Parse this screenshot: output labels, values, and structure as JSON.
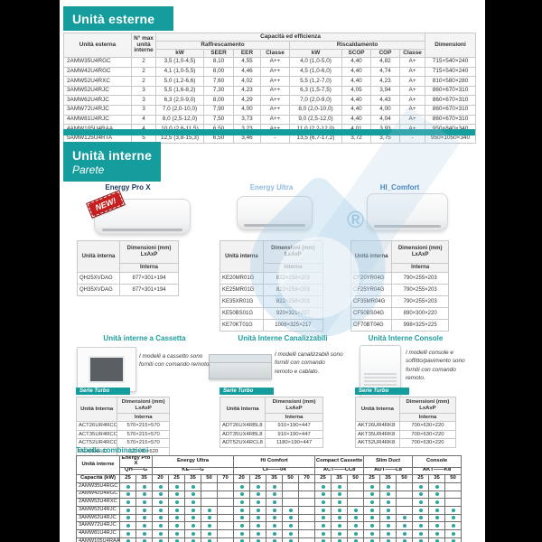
{
  "colors": {
    "accent": "#159c9c",
    "dot": "#2ba59e",
    "hi_comfort_blue": "#2e74b5",
    "energy_ultra_blue": "#8fbadd",
    "energy_prox_navy": "#17375e",
    "new_red": "#c51f1f"
  },
  "watermark": {
    "symbol": "®"
  },
  "outdoor": {
    "title": "Unità esterne",
    "header": {
      "unit": "Unità esterna",
      "max_units": "N° max\nunità\ninterne",
      "capacity": "Capacità ed efficienza",
      "cooling": "Raffrescamento",
      "heating": "Riscaldamento",
      "cooling_cols": [
        "kW",
        "SEER",
        "EER",
        "Classe"
      ],
      "heating_cols": [
        "kW",
        "SCOP",
        "COP",
        "Classe"
      ],
      "dimensions": "Dimensioni"
    },
    "rows": [
      [
        "2AMW35U4RGC",
        "2",
        "3,5 (1,0-4,5)",
        "8,10",
        "4,55",
        "A++",
        "4,0 (1,0-5,0)",
        "4,40",
        "4,82",
        "A+",
        "715×540×240"
      ],
      [
        "2AMW42U4RGC",
        "2",
        "4,1 (1,0-5,5)",
        "8,00",
        "4,46",
        "A++",
        "4,5 (1,0-6,0)",
        "4,40",
        "4,74",
        "A+",
        "715×540×240"
      ],
      [
        "2AMW52U4RXC",
        "2",
        "5,0 (1,2-6,6)",
        "7,60",
        "4,02",
        "A++",
        "5,5 (1,2-7,0)",
        "4,40",
        "4,23",
        "A+",
        "810×580×280"
      ],
      [
        "3AMW52U4RJC",
        "3",
        "5,5 (1,6-8,2)",
        "7,30",
        "4,23",
        "A++",
        "6,3 (1,5-7,5)",
        "4,05",
        "3,94",
        "A+",
        "860×670×310"
      ],
      [
        "3AMW62U4RJC",
        "3",
        "6,3 (2,0-9,0)",
        "8,00",
        "4,29",
        "A++",
        "7,0 (2,0-9,0)",
        "4,40",
        "4,43",
        "A+",
        "860×670×310"
      ],
      [
        "3AMW72U4RJC",
        "3",
        "7,0 (2,0-10,0)",
        "7,90",
        "4,00",
        "A++",
        "8,0 (2,0-10,0)",
        "4,40",
        "4,00",
        "A+",
        "860×670×310"
      ],
      [
        "4AMW81U4RJC",
        "4",
        "8,0 (2,5-12,0)",
        "7,50",
        "3,73",
        "A++",
        "9,0 (2,5-12,0)",
        "4,40",
        "4,04",
        "A+",
        "860×670×310"
      ],
      [
        "4AMW105U4RAA",
        "4",
        "10,0 (2,6-11,5)",
        "6,50",
        "3,23",
        "A++",
        "11,0 (2,2-12,0)",
        "4,01",
        "3,93",
        "A+",
        "950×840×340"
      ],
      [
        "5AMW125U4RTA",
        "5",
        "12,5 (3,8-15,3)",
        "6,50",
        "3,46",
        "-",
        "13,5 (6,7-17,2)",
        "3,72",
        "3,75",
        "-",
        "950×1050×340"
      ]
    ]
  },
  "indoor_wall": {
    "title": "Unità interne",
    "subtitle": "Parete",
    "col_unit": "Unità interna",
    "col_dim": "Dimensioni (mm) LxAxP",
    "col_sub": "Interna",
    "products": [
      {
        "name": "Energy Pro X",
        "badge": "NEW!",
        "rows": [
          [
            "QH25XVDAG",
            "877×301×194"
          ],
          [
            "QH35XVDAG",
            "877×301×194"
          ]
        ]
      },
      {
        "name": "Energy Ultra",
        "badge": "",
        "rows": [
          [
            "KE20MR01G",
            "822×258×203"
          ],
          [
            "KE25MR01G",
            "822×258×203"
          ],
          [
            "KE35XR01G",
            "822×258×203"
          ],
          [
            "KE50BS01G",
            "920×321×227"
          ],
          [
            "KE70KT01G",
            "1008×325×217"
          ]
        ]
      },
      {
        "name": "HI_Comfort",
        "badge": "",
        "rows": [
          [
            "CF20YR04G",
            "790×255×203"
          ],
          [
            "CF25YR04G",
            "790×255×203"
          ],
          [
            "CF35MR04G",
            "790×255×203"
          ],
          [
            "CF50BS04G",
            "890×300×220"
          ],
          [
            "CF70BT04G",
            "998×325×225"
          ]
        ]
      }
    ]
  },
  "indoor_other": {
    "col_unit": "Unità Interna",
    "col_dim": "Dimensioni (mm) LxAxP",
    "col_sub": "Interna",
    "sections": [
      {
        "title": "Unità interne a Cassetta",
        "serie": "Serie Turbo",
        "desc": "I modelli a cassetto sono forniti con comando remoto.",
        "rows": [
          [
            "ACT26UR4RCC8",
            "570×215×570"
          ],
          [
            "ACT35UR4RCC8",
            "570×215×570"
          ],
          [
            "ACT52UR4RCC8",
            "570×215×570"
          ],
          [
            "PE-GEA-LD",
            "620×40×620"
          ]
        ]
      },
      {
        "title": "Unità Interne Canalizzabili",
        "serie": "Serie Turbo",
        "desc": "I modelli canalizzabili sono forniti con comando remoto e cablato.",
        "rows": [
          [
            "ADT26UX4RBL8",
            "910×190×447"
          ],
          [
            "ADT35UX4RBL8",
            "910×190×447"
          ],
          [
            "ADT52UX4RCL8",
            "1180×190×447"
          ]
        ]
      },
      {
        "title": "Unità Interne Console",
        "serie": "Serie Turbo",
        "desc": "I modelli console e soffitto/pavimento sono forniti con comando remoto.",
        "rows": [
          [
            "AKT26UR4RK8",
            "700×630×220"
          ],
          [
            "AKT35UR4RK8",
            "700×630×220"
          ],
          [
            "AKT52UR4RK8",
            "700×630×220"
          ]
        ]
      }
    ]
  },
  "combos": {
    "title": "Tabella combinazioni",
    "unit_col": "Unità interne",
    "capacity_label": "Capacità (kW)",
    "groups": [
      {
        "name": "Energy Pro X",
        "code": "QH——G",
        "caps": [
          "25",
          "35"
        ]
      },
      {
        "name": "Energy Ultra",
        "code": "KE——G",
        "caps": [
          "20",
          "25",
          "35",
          "50",
          "70"
        ]
      },
      {
        "name": "Hi Comfort",
        "code": "CF——04",
        "caps": [
          "20",
          "25",
          "35",
          "50",
          "70"
        ]
      },
      {
        "name": "Compact Cassette",
        "code": "ACT——CC8",
        "caps": [
          "25",
          "35",
          "50"
        ]
      },
      {
        "name": "Slim Duct",
        "code": "ADT——L8",
        "caps": [
          "25",
          "35",
          "50"
        ]
      },
      {
        "name": "Console",
        "code": "AKT——K8",
        "caps": [
          "25",
          "35",
          "50"
        ]
      }
    ],
    "rows": [
      {
        "label": "2AMW35U4RGC",
        "dots": [
          1,
          1,
          1,
          1,
          1,
          0,
          0,
          1,
          1,
          1,
          0,
          0,
          1,
          1,
          0,
          1,
          1,
          0,
          1,
          1,
          0
        ]
      },
      {
        "label": "2AMW42U4RGC",
        "dots": [
          1,
          1,
          1,
          1,
          1,
          0,
          0,
          1,
          1,
          1,
          0,
          0,
          1,
          1,
          0,
          1,
          1,
          0,
          1,
          1,
          0
        ]
      },
      {
        "label": "2AMW52U4RXC",
        "dots": [
          1,
          1,
          1,
          1,
          1,
          0,
          0,
          1,
          1,
          1,
          0,
          0,
          1,
          1,
          0,
          1,
          1,
          0,
          1,
          1,
          0
        ]
      },
      {
        "label": "3AMW52U4RJC",
        "dots": [
          1,
          1,
          1,
          1,
          1,
          1,
          0,
          1,
          1,
          1,
          1,
          0,
          1,
          1,
          1,
          1,
          1,
          0,
          1,
          1,
          1
        ]
      },
      {
        "label": "3AMW62U4RJC",
        "dots": [
          1,
          1,
          1,
          1,
          1,
          1,
          0,
          1,
          1,
          1,
          1,
          0,
          1,
          1,
          1,
          1,
          1,
          1,
          1,
          1,
          1
        ]
      },
      {
        "label": "3AMW72U4RJC",
        "dots": [
          1,
          1,
          1,
          1,
          1,
          1,
          0,
          1,
          1,
          1,
          1,
          0,
          1,
          1,
          1,
          1,
          1,
          1,
          1,
          1,
          1
        ]
      },
      {
        "label": "4AMW81U4RJC",
        "dots": [
          1,
          1,
          1,
          1,
          1,
          1,
          0,
          1,
          1,
          1,
          1,
          0,
          1,
          1,
          1,
          1,
          1,
          1,
          1,
          1,
          1
        ]
      },
      {
        "label": "4AMW105U4RAA",
        "dots": [
          1,
          1,
          1,
          1,
          1,
          1,
          0,
          1,
          1,
          1,
          1,
          0,
          1,
          1,
          1,
          1,
          1,
          1,
          1,
          1,
          1
        ]
      },
      {
        "label": "5AMW125U4RTA",
        "dots": [
          1,
          1,
          1,
          1,
          1,
          1,
          1,
          1,
          1,
          1,
          1,
          1,
          1,
          1,
          1,
          1,
          1,
          1,
          1,
          1,
          1
        ]
      }
    ]
  }
}
